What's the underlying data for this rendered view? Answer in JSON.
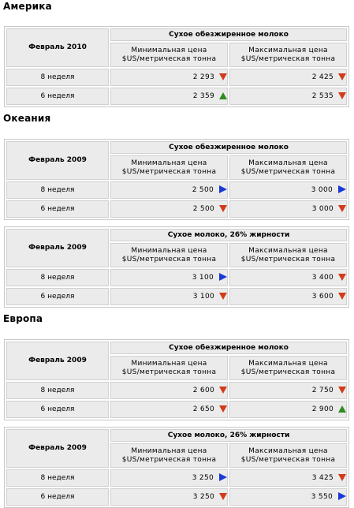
{
  "regions": [
    {
      "title": "Америка"
    },
    {
      "title": "Океания"
    },
    {
      "title": "Европа"
    }
  ],
  "colors": {
    "down": "#d33a1a",
    "up": "#2e8b1e",
    "right": "#1a3ad6"
  },
  "tables": [
    {
      "month": "Февраль 2010",
      "product": "Сухое обезжиренное молоко",
      "min_header_line1": "Минимальная цена",
      "min_header_line2": "$US/метрическая тонна",
      "max_header_line1": "Максимальная цена",
      "max_header_line2": "$US/метрическая тонна",
      "rows": [
        {
          "week": "8 неделя",
          "min": "2 293",
          "min_trend": "down-arrow-icon",
          "max": "2 425",
          "max_trend": "down-arrow-icon"
        },
        {
          "week": "6 неделя",
          "min": "2 359",
          "min_trend": "up-arrow-icon",
          "max": "2 535",
          "max_trend": "down-arrow-icon"
        }
      ]
    },
    {
      "month": "Февраль 2009",
      "product": "Сухое обезжиренное молоко",
      "min_header_line1": "Минимальная цена",
      "min_header_line2": "$US/метрическая тонна",
      "max_header_line1": "Максимальная цена",
      "max_header_line2": "$US/метрическая тонна",
      "rows": [
        {
          "week": "8 неделя",
          "min": "2 500",
          "min_trend": "right-arrow-icon",
          "max": "3 000",
          "max_trend": "right-arrow-icon"
        },
        {
          "week": "6 неделя",
          "min": "2 500",
          "min_trend": "down-arrow-icon",
          "max": "3 000",
          "max_trend": "down-arrow-icon"
        }
      ]
    },
    {
      "month": "Февраль 2009",
      "product": "Сухое молоко, 26% жирности",
      "min_header_line1": "Минимальная цена",
      "min_header_line2": "$US/метрическая тонна",
      "max_header_line1": "Максимальная цена",
      "max_header_line2": "$US/метрическая тонна",
      "rows": [
        {
          "week": "8 неделя",
          "min": "3 100",
          "min_trend": "right-arrow-icon",
          "max": "3 400",
          "max_trend": "down-arrow-icon"
        },
        {
          "week": "6 неделя",
          "min": "3 100",
          "min_trend": "down-arrow-icon",
          "max": "3 600",
          "max_trend": "down-arrow-icon"
        }
      ]
    },
    {
      "month": "Февраль 2009",
      "product": "Сухое обезжиренное молоко",
      "min_header_line1": "Минимальная цена",
      "min_header_line2": "$US/метрическая тонна",
      "max_header_line1": "Максимальная цена",
      "max_header_line2": "$US/метрическая тонна",
      "rows": [
        {
          "week": "8 неделя",
          "min": "2 600",
          "min_trend": "down-arrow-icon",
          "max": "2 750",
          "max_trend": "down-arrow-icon"
        },
        {
          "week": "6 неделя",
          "min": "2 650",
          "min_trend": "down-arrow-icon",
          "max": "2 900",
          "max_trend": "up-arrow-icon"
        }
      ]
    },
    {
      "month": "Февраль 2009",
      "product": "Сухое молоко, 26% жирности",
      "min_header_line1": "Минимальная цена",
      "min_header_line2": "$US/метрическая тонна",
      "max_header_line1": "Максимальная цена",
      "max_header_line2": "$US/метрическая тонна",
      "rows": [
        {
          "week": "8 неделя",
          "min": "3 250",
          "min_trend": "right-arrow-icon",
          "max": "3 425",
          "max_trend": "down-arrow-icon"
        },
        {
          "week": "6 неделя",
          "min": "3 250",
          "min_trend": "down-arrow-icon",
          "max": "3 550",
          "max_trend": "right-arrow-icon"
        }
      ]
    }
  ]
}
